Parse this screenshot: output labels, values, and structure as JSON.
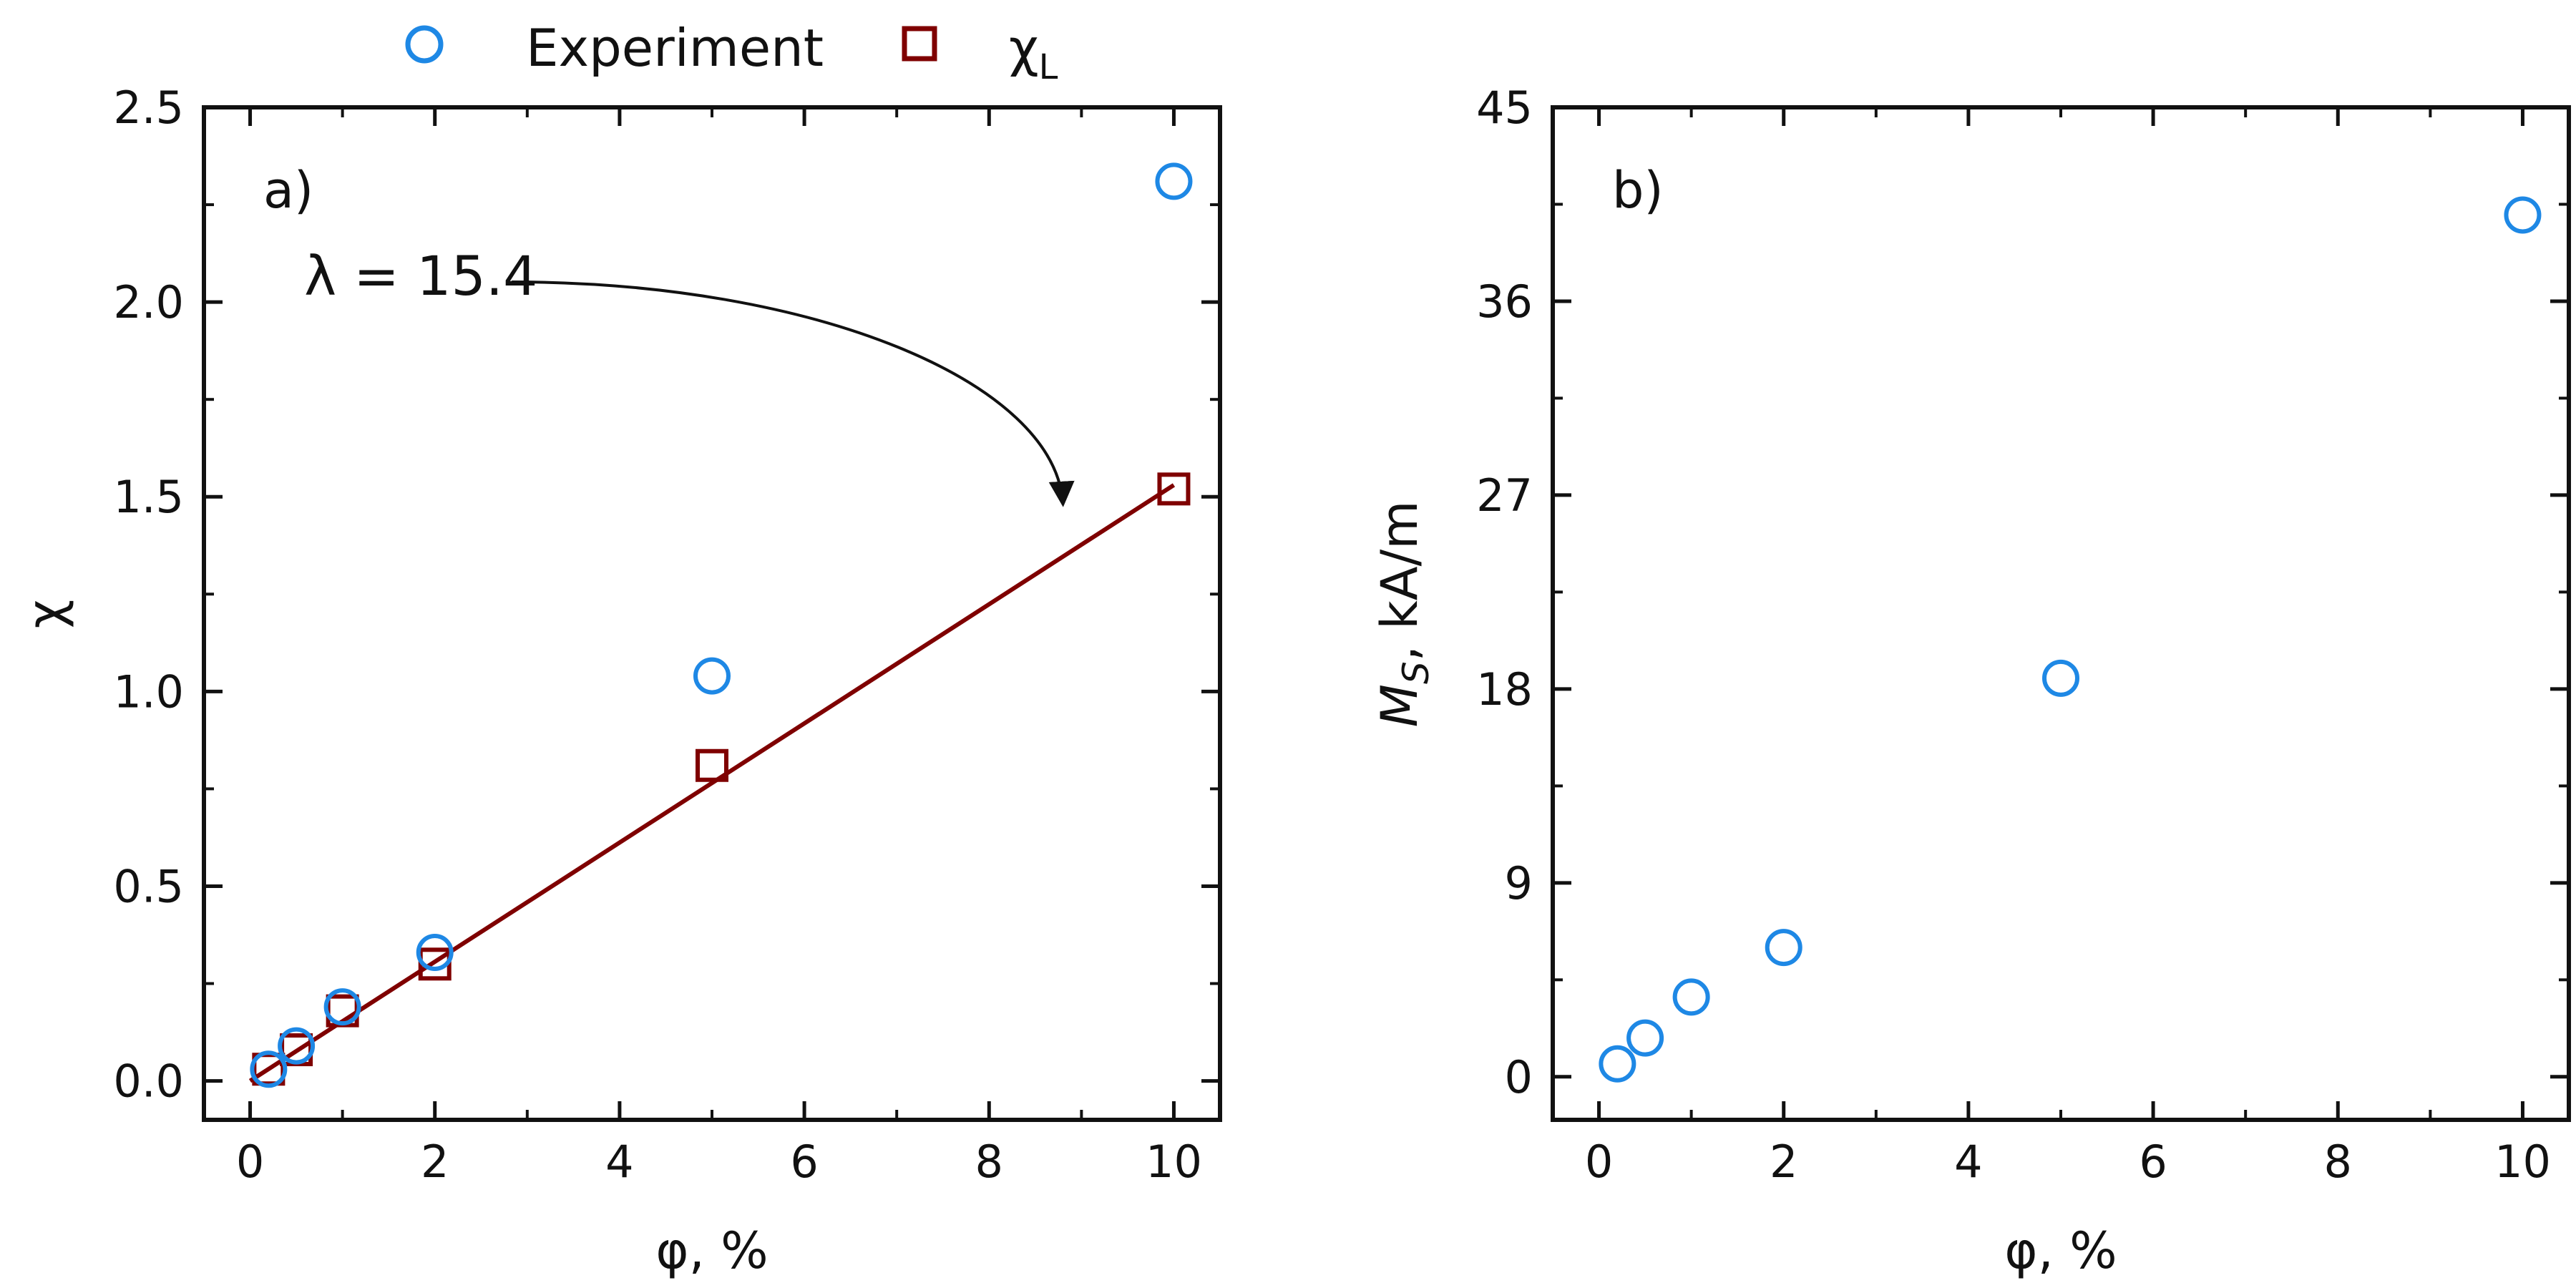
{
  "legend": {
    "experiment_label": "Experiment",
    "model_symbol": "χ",
    "model_subscript": "L"
  },
  "colors": {
    "experiment": "#1e88e5",
    "model": "#7f0000",
    "axis": "#111111"
  },
  "chart_data": [
    {
      "type": "scatter",
      "panel_label": "a)",
      "xlabel": "φ, %",
      "ylabel": "χ",
      "xlim": [
        -0.5,
        10.5
      ],
      "ylim": [
        -0.1,
        2.5
      ],
      "xticks": [
        0,
        2,
        4,
        6,
        8,
        10
      ],
      "yticks": [
        0.0,
        0.5,
        1.0,
        1.5,
        2.0,
        2.5
      ],
      "ytick_labels": [
        "0.0",
        "0.5",
        "1.0",
        "1.5",
        "2.0",
        "2.5"
      ],
      "series": [
        {
          "name": "Experiment",
          "marker": "circle",
          "x": [
            0.2,
            0.5,
            1,
            2,
            5,
            10
          ],
          "y": [
            0.03,
            0.09,
            0.19,
            0.33,
            1.04,
            2.31
          ]
        },
        {
          "name": "χL",
          "marker": "square",
          "x": [
            0.2,
            0.5,
            1,
            2,
            5,
            10
          ],
          "y": [
            0.03,
            0.08,
            0.18,
            0.3,
            0.81,
            1.52
          ]
        }
      ],
      "line": {
        "x": [
          0,
          10
        ],
        "y": [
          0.0,
          1.53
        ]
      },
      "annotation": {
        "text": "λ = 15.4",
        "x": 2.6,
        "y": 2.07,
        "arrow_to_x": 8.8,
        "arrow_to_y": 1.48
      }
    },
    {
      "type": "scatter",
      "panel_label": "b)",
      "xlabel": "φ, %",
      "ylabel_main": "M",
      "ylabel_sub": "S",
      "ylabel_rest": ", kA/m",
      "xlim": [
        -0.5,
        10.5
      ],
      "ylim": [
        -2,
        45
      ],
      "xticks": [
        0,
        2,
        4,
        6,
        8,
        10
      ],
      "yticks": [
        0,
        9,
        18,
        27,
        36,
        45
      ],
      "ytick_labels": [
        "0",
        "9",
        "18",
        "27",
        "36",
        "45"
      ],
      "series": [
        {
          "name": "Experiment",
          "marker": "circle",
          "x": [
            0.2,
            0.5,
            1,
            2,
            5,
            10
          ],
          "y": [
            0.6,
            1.8,
            3.7,
            6.0,
            18.5,
            40.0
          ]
        }
      ]
    }
  ]
}
